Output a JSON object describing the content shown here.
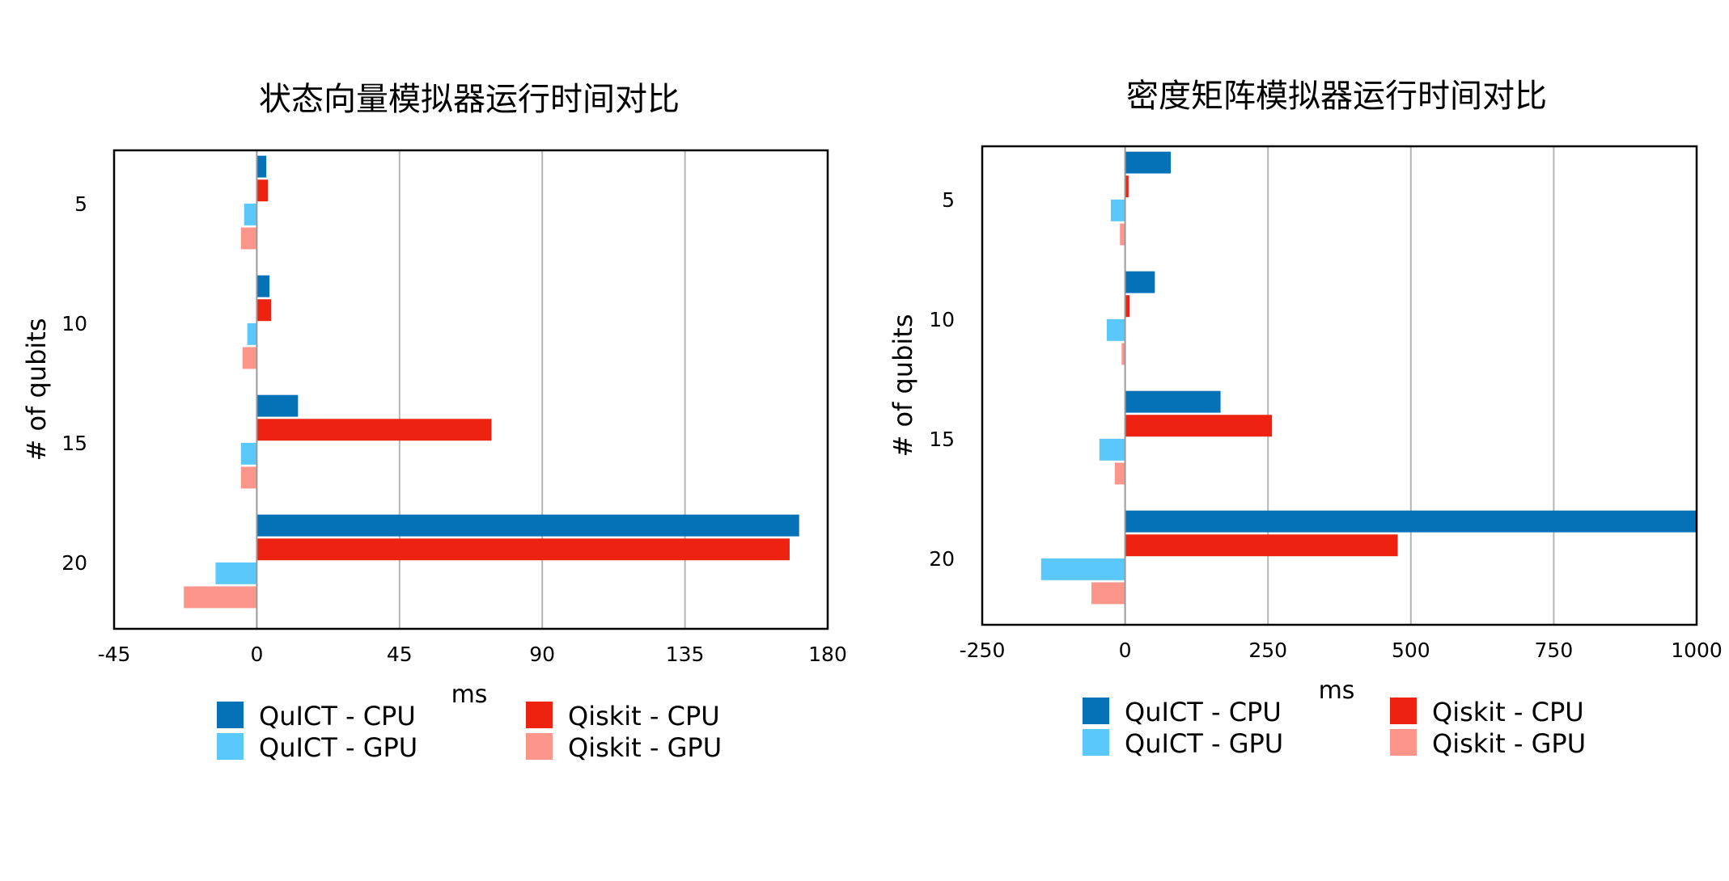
{
  "chart_data": [
    {
      "type": "bar",
      "orientation": "horizontal",
      "title": "状态向量模拟器运行时间对比",
      "xlabel": "ms",
      "ylabel": "# of qubits",
      "categories": [
        "5",
        "10",
        "15",
        "20"
      ],
      "xlim": [
        -45,
        180
      ],
      "xticks": [
        "-45",
        "0",
        "45",
        "90",
        "135",
        "180"
      ],
      "grid": true,
      "legend_position": "bottom",
      "series": [
        {
          "name": "QuICT - CPU",
          "color": "#0572b8",
          "values": [
            3,
            4,
            13,
            171
          ]
        },
        {
          "name": "Qiskit - CPU",
          "color": "#ee2211",
          "values": [
            3.5,
            4.5,
            74,
            168
          ]
        },
        {
          "name": "QuICT - GPU",
          "color": "#5ac8fa",
          "values": [
            -4,
            -3,
            -5,
            -13
          ]
        },
        {
          "name": "Qiskit - GPU",
          "color": "#fc958a",
          "values": [
            -5,
            -4.5,
            -5,
            -23
          ]
        }
      ]
    },
    {
      "type": "bar",
      "orientation": "horizontal",
      "title": "密度矩阵模拟器运行时间对比",
      "xlabel": "ms",
      "ylabel": "# of qubits",
      "categories": [
        "5",
        "10",
        "15",
        "20"
      ],
      "xlim": [
        -250,
        1000
      ],
      "xticks": [
        "-250",
        "0",
        "250",
        "500",
        "750",
        "1000"
      ],
      "grid": true,
      "legend_position": "bottom",
      "series": [
        {
          "name": "QuICT - CPU",
          "color": "#0572b8",
          "values": [
            80,
            52,
            167,
            1000
          ]
        },
        {
          "name": "Qiskit - CPU",
          "color": "#ee2211",
          "values": [
            6,
            8,
            257,
            477
          ]
        },
        {
          "name": "QuICT - GPU",
          "color": "#5ac8fa",
          "values": [
            -25,
            -32,
            -45,
            -147
          ]
        },
        {
          "name": "Qiskit - GPU",
          "color": "#fc958a",
          "values": [
            -9,
            -6,
            -18,
            -59
          ]
        }
      ]
    }
  ]
}
